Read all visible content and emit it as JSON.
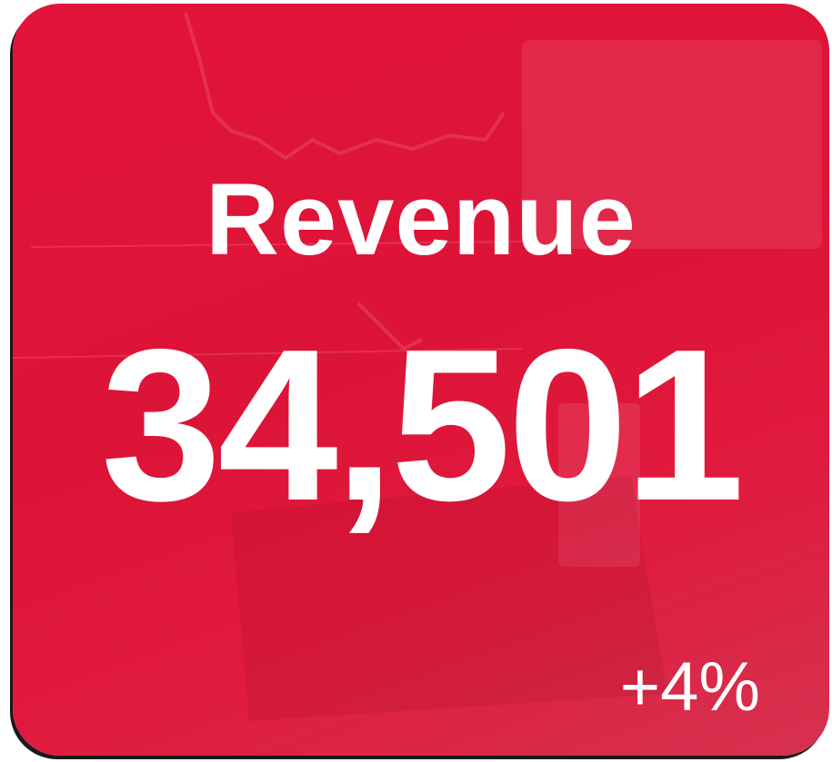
{
  "card": {
    "title": "Revenue",
    "value": "34,501",
    "change": "+4%"
  }
}
